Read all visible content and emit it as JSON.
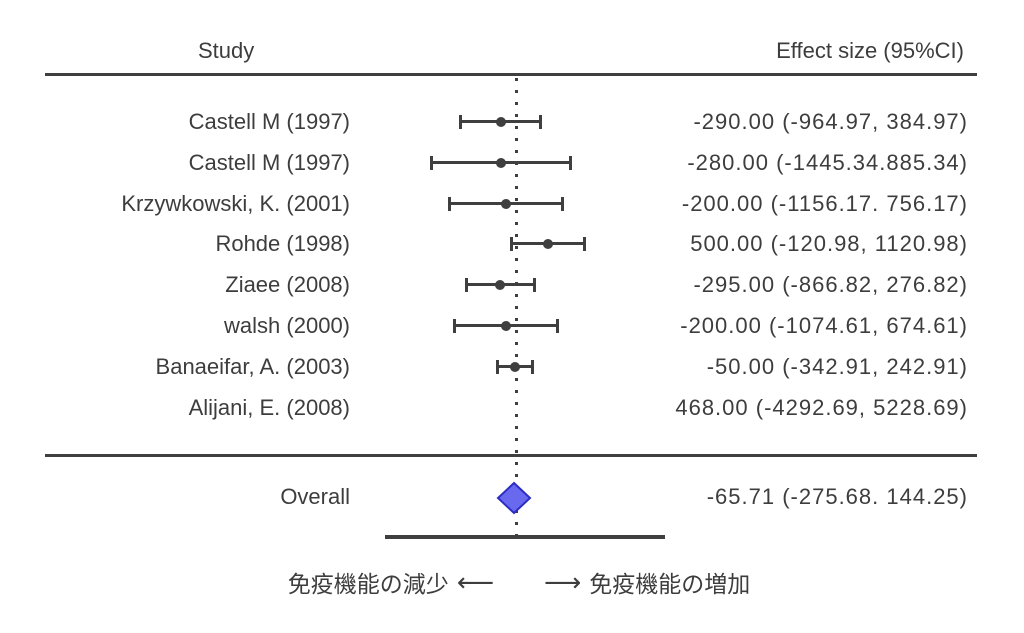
{
  "header": {
    "study_col": "Study",
    "effect_col": "Effect size (95%CI)"
  },
  "chart_data": {
    "type": "forest",
    "title": "",
    "zero_line_value": 0,
    "studies": [
      {
        "label": "Castell M (1997)",
        "effect": -290.0,
        "ci_low": -964.97,
        "ci_high": 384.97,
        "text": "-290.00 (-964.97, 384.97)",
        "plotted": true
      },
      {
        "label": "Castell M (1997)",
        "effect": -280.0,
        "ci_low": -1445.34,
        "ci_high": 885.34,
        "text": "-280.00 (-1445.34.885.34)",
        "plotted": true
      },
      {
        "label": "Krzywkowski, K. (2001)",
        "effect": -200.0,
        "ci_low": -1156.17,
        "ci_high": 756.17,
        "text": "-200.00 (-1156.17. 756.17)",
        "plotted": true
      },
      {
        "label": "Rohde (1998)",
        "effect": 500.0,
        "ci_low": -120.98,
        "ci_high": 1120.98,
        "text": "500.00 (-120.98, 1120.98)",
        "plotted": true
      },
      {
        "label": "Ziaee (2008)",
        "effect": -295.0,
        "ci_low": -866.82,
        "ci_high": 276.82,
        "text": "-295.00 (-866.82, 276.82)",
        "plotted": true
      },
      {
        "label": "walsh (2000)",
        "effect": -200.0,
        "ci_low": -1074.61,
        "ci_high": 674.61,
        "text": "-200.00 (-1074.61, 674.61)",
        "plotted": true
      },
      {
        "label": "Banaeifar, A. (2003)",
        "effect": -50.0,
        "ci_low": -342.91,
        "ci_high": 242.91,
        "text": "-50.00 (-342.91, 242.91)",
        "plotted": true
      },
      {
        "label": "Alijani, E. (2008)",
        "effect": 468.0,
        "ci_low": -4292.69,
        "ci_high": 5228.69,
        "text": "468.00 (-4292.69, 5228.69)",
        "plotted": false
      }
    ],
    "overall": {
      "label": "Overall",
      "effect": -65.71,
      "ci_low": -275.68,
      "ci_high": 144.25,
      "text": "-65.71 (-275.68. 144.25)"
    },
    "footer": {
      "left_label": "免疫機能の減少",
      "left_arrow": "⟵",
      "right_arrow": "⟶",
      "right_label": "免疫機能の増加"
    }
  },
  "colors": {
    "text": "#3d3d3d",
    "line": "#3f3f3f",
    "marker": "#3f3f3f",
    "diamond_fill": "#6969ef",
    "diamond_border": "#2d2dc4"
  }
}
